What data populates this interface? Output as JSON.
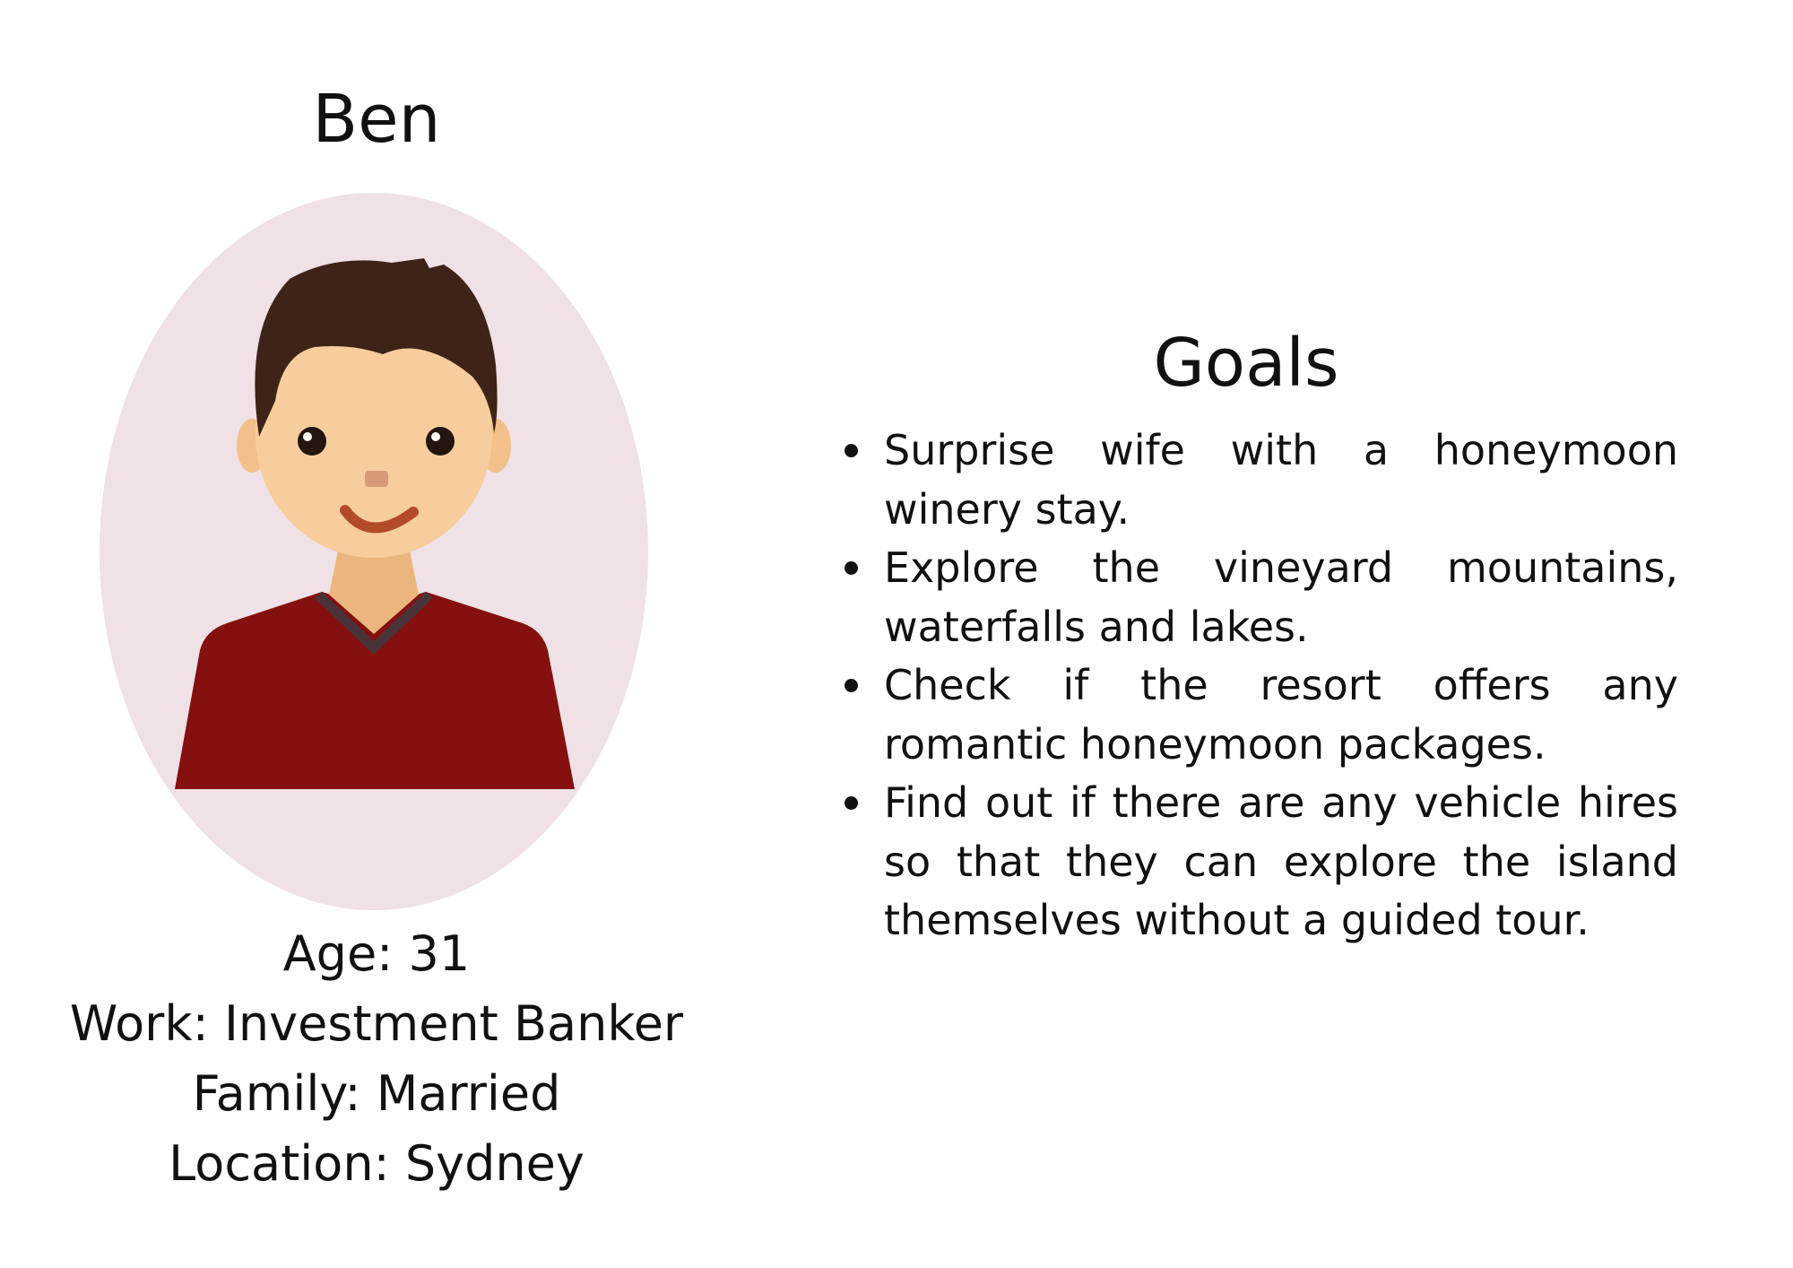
{
  "persona": {
    "name": "Ben",
    "details": [
      "Age: 31",
      "Work: Investment Banker",
      "Family: Married",
      "Location: Sydney"
    ]
  },
  "goals": {
    "title": "Goals",
    "items": [
      "Surprise wife with a honeymoon winery stay.",
      "Explore the vineyard mountains, waterfalls and lakes.",
      "Check if the resort offers any romantic honeymoon packages.",
      "Find out if there are any vehicle hires so that they can explore the island themselves without a guided tour."
    ]
  },
  "colors": {
    "background": "#ffffff",
    "avatar_backdrop": "#efe1e5",
    "hair": "#3e2418",
    "skin": "#f7cd9d",
    "sweater": "#84100f"
  },
  "icons": {
    "avatar": "man-avatar-icon"
  }
}
